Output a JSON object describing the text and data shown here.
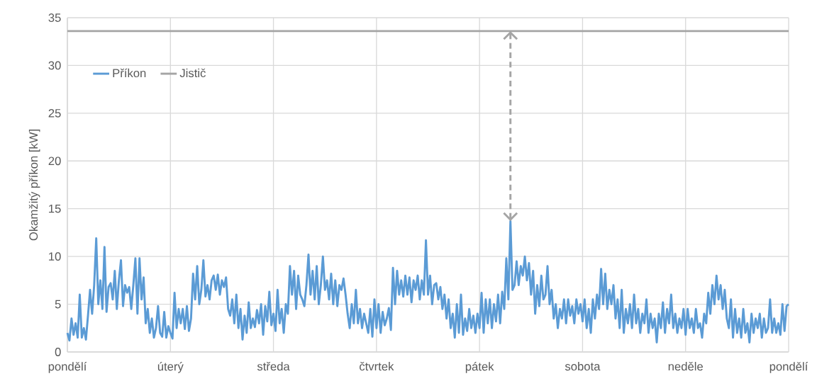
{
  "chart_data": {
    "type": "line",
    "ylabel": "Okamžitý příkon [kW]",
    "categories": [
      "pondělí",
      null,
      null,
      null,
      null,
      null,
      null,
      null,
      null,
      null,
      null,
      null,
      null,
      null,
      null,
      null,
      null,
      null,
      null,
      null,
      null,
      null,
      null,
      null,
      null,
      null,
      null,
      null,
      null,
      null,
      null,
      null,
      null,
      null,
      null,
      null,
      null,
      null,
      null,
      null,
      null,
      null,
      null,
      null,
      null,
      null,
      null,
      null,
      null,
      null,
      "úterý",
      null,
      null,
      null,
      null,
      null,
      null,
      null,
      null,
      null,
      null,
      null,
      null,
      null,
      null,
      null,
      null,
      null,
      null,
      null,
      null,
      null,
      null,
      null,
      null,
      null,
      null,
      null,
      null,
      null,
      null,
      null,
      null,
      null,
      null,
      null,
      null,
      null,
      null,
      null,
      null,
      null,
      null,
      null,
      null,
      null,
      null,
      null,
      null,
      null,
      "středa",
      null,
      null,
      null,
      null,
      null,
      null,
      null,
      null,
      null,
      null,
      null,
      null,
      null,
      null,
      null,
      null,
      null,
      null,
      null,
      null,
      null,
      null,
      null,
      null,
      null,
      null,
      null,
      null,
      null,
      null,
      null,
      null,
      null,
      null,
      null,
      null,
      null,
      null,
      null,
      null,
      null,
      null,
      null,
      null,
      null,
      null,
      null,
      null,
      null,
      "čtvrtek",
      null,
      null,
      null,
      null,
      null,
      null,
      null,
      null,
      null,
      null,
      null,
      null,
      null,
      null,
      null,
      null,
      null,
      null,
      null,
      null,
      null,
      null,
      null,
      null,
      null,
      null,
      null,
      null,
      null,
      null,
      null,
      null,
      null,
      null,
      null,
      null,
      null,
      null,
      null,
      null,
      null,
      null,
      null,
      null,
      null,
      null,
      null,
      null,
      null,
      "pátek",
      null,
      null,
      null,
      null,
      null,
      null,
      null,
      null,
      null,
      null,
      null,
      null,
      null,
      null,
      null,
      null,
      null,
      null,
      null,
      null,
      null,
      null,
      null,
      null,
      null,
      null,
      null,
      null,
      null,
      null,
      null,
      null,
      null,
      null,
      null,
      null,
      null,
      null,
      null,
      null,
      null,
      null,
      null,
      null,
      null,
      null,
      null,
      null,
      null,
      "sobota",
      null,
      null,
      null,
      null,
      null,
      null,
      null,
      null,
      null,
      null,
      null,
      null,
      null,
      null,
      null,
      null,
      null,
      null,
      null,
      null,
      null,
      null,
      null,
      null,
      null,
      null,
      null,
      null,
      null,
      null,
      null,
      null,
      null,
      null,
      null,
      null,
      null,
      null,
      null,
      null,
      null,
      null,
      null,
      null,
      null,
      null,
      null,
      null,
      null,
      "neděle",
      null,
      null,
      null,
      null,
      null,
      null,
      null,
      null,
      null,
      null,
      null,
      null,
      null,
      null,
      null,
      null,
      null,
      null,
      null,
      null,
      null,
      null,
      null,
      null,
      null,
      null,
      null,
      null,
      null,
      null,
      null,
      null,
      null,
      null,
      null,
      null,
      null,
      null,
      null,
      null,
      null,
      null,
      null,
      null,
      null,
      null,
      null,
      null,
      null,
      "pondělí"
    ],
    "ylim": [
      0,
      35
    ],
    "yticks": [
      0,
      5,
      10,
      15,
      20,
      25,
      30,
      35
    ],
    "grid": true,
    "legend": "top left",
    "series": [
      {
        "name": "Příkon",
        "color": "#5b9bd5",
        "values": [
          2.0,
          1.2,
          3.5,
          1.8,
          3.0,
          1.5,
          6.0,
          1.5,
          2.5,
          1.3,
          3.8,
          6.5,
          4.0,
          7.0,
          11.9,
          5.0,
          7.5,
          4.5,
          11.0,
          4.2,
          6.8,
          7.2,
          5.5,
          8.5,
          4.5,
          7.5,
          9.6,
          4.8,
          7.0,
          6.2,
          6.8,
          4.5,
          7.0,
          9.8,
          4.0,
          9.8,
          5.5,
          7.8,
          3.0,
          4.5,
          2.0,
          3.5,
          1.5,
          2.5,
          4.8,
          2.0,
          1.6,
          4.2,
          1.5,
          2.7,
          2.0,
          1.4,
          6.2,
          2.5,
          4.5,
          3.0,
          4.5,
          2.4,
          4.8,
          2.2,
          3.5,
          8.2,
          5.5,
          9.0,
          5.0,
          6.5,
          9.6,
          5.8,
          7.0,
          5.5,
          7.5,
          8.0,
          6.5,
          8.1,
          6.0,
          7.5,
          6.8,
          7.8,
          4.5,
          3.8,
          5.5,
          3.0,
          6.0,
          2.5,
          4.5,
          1.3,
          3.8,
          2.0,
          5.2,
          2.5,
          3.5,
          2.6,
          4.4,
          3.0,
          5.0,
          1.8,
          4.8,
          3.2,
          6.3,
          2.8,
          4.0,
          2.2,
          6.5,
          3.0,
          4.5,
          2.0,
          5.0,
          4.0,
          9.0,
          6.0,
          8.5,
          4.5,
          8.0,
          6.0,
          5.5,
          4.8,
          7.0,
          10.2,
          6.0,
          8.5,
          5.5,
          9.0,
          5.0,
          7.0,
          10.0,
          6.5,
          7.5,
          5.5,
          8.2,
          5.0,
          7.5,
          4.8,
          7.0,
          6.5,
          7.7,
          6.0,
          4.0,
          2.5,
          5.0,
          3.0,
          6.5,
          3.0,
          4.5,
          2.5,
          4.0,
          3.0,
          2.0,
          4.5,
          1.6,
          5.5,
          2.5,
          5.0,
          2.0,
          4.2,
          2.8,
          3.5,
          4.6,
          2.3,
          8.8,
          5.0,
          8.5,
          6.0,
          7.5,
          5.8,
          8.0,
          6.0,
          7.8,
          5.2,
          7.5,
          6.5,
          8.0,
          5.5,
          7.5,
          6.0,
          11.7,
          6.0,
          8.0,
          5.0,
          7.0,
          7.2,
          5.5,
          6.8,
          4.5,
          6.0,
          3.5,
          5.5,
          2.5,
          4.0,
          1.5,
          5.0,
          2.0,
          6.0,
          1.8,
          3.5,
          2.2,
          4.5,
          2.5,
          3.8,
          2.0,
          4.0,
          2.5,
          6.2,
          2.0,
          5.5,
          3.0,
          5.5,
          2.5,
          5.0,
          3.2,
          6.0,
          3.0,
          6.3,
          4.5,
          9.8,
          5.5,
          13.7,
          6.5,
          7.0,
          9.5,
          7.0,
          9.0,
          8.0,
          10.0,
          7.5,
          9.3,
          6.0,
          8.5,
          4.0,
          7.0,
          4.8,
          8.0,
          5.5,
          6.0,
          9.0,
          5.0,
          6.5,
          3.5,
          5.0,
          2.5,
          4.5,
          3.5,
          5.5,
          3.0,
          5.5,
          3.8,
          4.8,
          3.0,
          5.5,
          4.0,
          5.0,
          3.2,
          5.5,
          2.5,
          4.5,
          2.0,
          5.5,
          3.5,
          6.0,
          4.5,
          8.7,
          5.0,
          8.2,
          4.5,
          6.5,
          5.0,
          7.0,
          3.5,
          5.5,
          2.5,
          6.5,
          2.0,
          4.5,
          3.0,
          5.0,
          2.5,
          6.0,
          3.0,
          4.5,
          2.0,
          4.0,
          3.0,
          5.5,
          2.0,
          4.0,
          2.5,
          3.5,
          1.0,
          4.0,
          2.5,
          5.2,
          2.0,
          4.5,
          3.0,
          6.0,
          2.5,
          4.0,
          2.0,
          3.5,
          2.5,
          4.5,
          1.8,
          4.5,
          2.5,
          3.5,
          2.0,
          4.5,
          2.5,
          3.0,
          1.5,
          4.0,
          3.0,
          6.2,
          4.0,
          7.0,
          5.0,
          8.0,
          5.5,
          7.0,
          4.5,
          6.5,
          3.5,
          2.5,
          5.5,
          1.5,
          4.5,
          2.0,
          3.5,
          1.5,
          4.5,
          2.0,
          3.0,
          1.0,
          4.0,
          2.0,
          3.5,
          2.5,
          4.0,
          1.5,
          3.5,
          2.0,
          2.5,
          5.5,
          2.0,
          3.5,
          2.0,
          3.0,
          1.8,
          5.0,
          2.2,
          4.8,
          5.0
        ]
      }
    ],
    "ref_lines": [
      {
        "axis": "y",
        "value": 33.6,
        "label": "Jistič",
        "color": "#a5a5a5"
      }
    ]
  }
}
